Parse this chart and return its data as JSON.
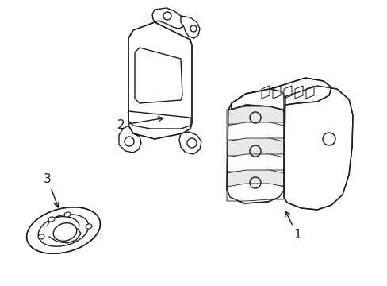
{
  "background_color": "#ffffff",
  "line_color": "#1a1a1a",
  "label_1": "1",
  "label_2": "2",
  "label_3": "3",
  "fig_width": 4.89,
  "fig_height": 3.6,
  "dpi": 100
}
